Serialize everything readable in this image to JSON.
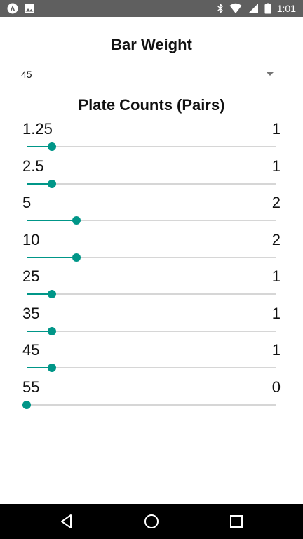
{
  "status_bar": {
    "time": "1:01",
    "left_icons": [
      "app-logo-icon",
      "image-icon"
    ],
    "right_icons": [
      "bluetooth-icon",
      "wifi-icon",
      "signal-icon",
      "battery-icon"
    ]
  },
  "bar_weight": {
    "title": "Bar Weight",
    "selected_value": "45"
  },
  "plates": {
    "title": "Plate Counts (Pairs)",
    "slider_max": 10,
    "items": [
      {
        "weight": "1.25",
        "count": "1",
        "value": 1
      },
      {
        "weight": "2.5",
        "count": "1",
        "value": 1
      },
      {
        "weight": "5",
        "count": "2",
        "value": 2
      },
      {
        "weight": "10",
        "count": "2",
        "value": 2
      },
      {
        "weight": "25",
        "count": "1",
        "value": 1
      },
      {
        "weight": "35",
        "count": "1",
        "value": 1
      },
      {
        "weight": "45",
        "count": "1",
        "value": 1
      },
      {
        "weight": "55",
        "count": "0",
        "value": 0
      }
    ]
  },
  "nav_bar": {
    "buttons": [
      "back-icon",
      "home-icon",
      "recents-icon"
    ]
  },
  "colors": {
    "accent": "#009688",
    "track": "#d6d6d6",
    "status_bar": "#5f5f5f",
    "nav_bar": "#000000"
  }
}
